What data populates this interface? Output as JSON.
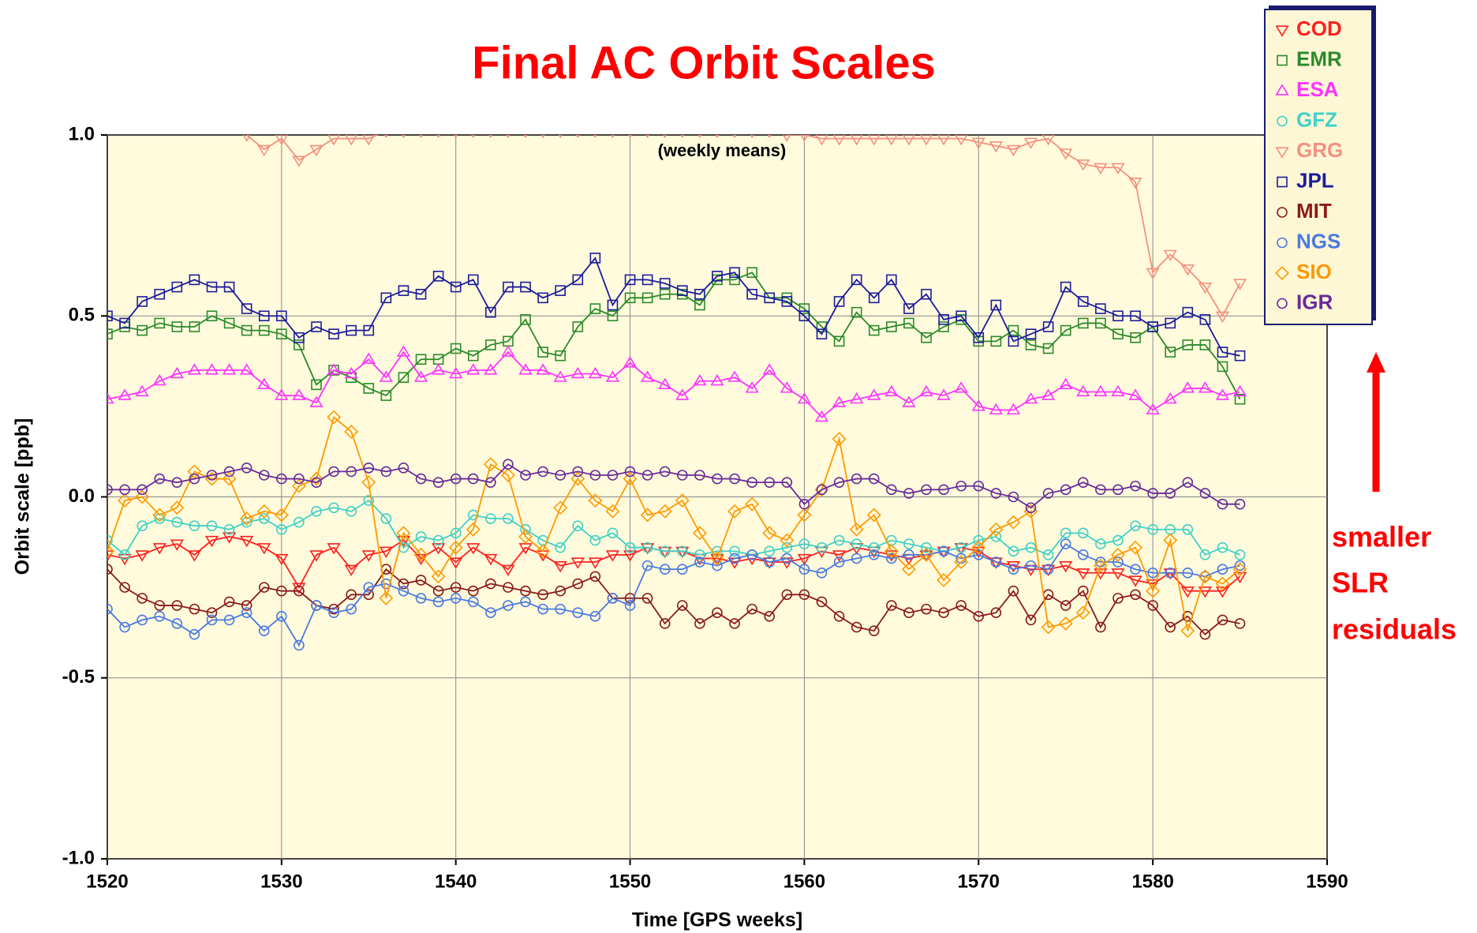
{
  "chart_data": {
    "type": "line",
    "title": "Final AC Orbit Scales",
    "annotation": "(weekly means)",
    "side_note": [
      "smaller",
      "SLR",
      "residuals"
    ],
    "x_label": "Time [GPS weeks]",
    "y_label": "Orbit scale [ppb]",
    "xlim": [
      1520,
      1590
    ],
    "xticks": [
      1520,
      1530,
      1540,
      1550,
      1560,
      1570,
      1580,
      1590
    ],
    "ylim": [
      -1,
      1
    ],
    "yticks": [
      {
        "value": -1,
        "label": "-1.0"
      },
      {
        "value": -0.5,
        "label": "-0.5"
      },
      {
        "value": 0,
        "label": "0.0"
      },
      {
        "value": 0.5,
        "label": "0.5"
      },
      {
        "value": 1,
        "label": "1.0"
      }
    ],
    "grid": true,
    "legend": "upper right",
    "x": [
      1520,
      1521,
      1522,
      1523,
      1524,
      1525,
      1526,
      1527,
      1528,
      1529,
      1530,
      1531,
      1532,
      1533,
      1534,
      1535,
      1536,
      1537,
      1538,
      1539,
      1540,
      1541,
      1542,
      1543,
      1544,
      1545,
      1546,
      1547,
      1548,
      1549,
      1550,
      1551,
      1552,
      1553,
      1554,
      1555,
      1556,
      1557,
      1558,
      1559,
      1560,
      1561,
      1562,
      1563,
      1564,
      1565,
      1566,
      1567,
      1568,
      1569,
      1570,
      1571,
      1572,
      1573,
      1574,
      1575,
      1576,
      1577,
      1578,
      1579,
      1580,
      1581,
      1582,
      1583,
      1584,
      1585
    ],
    "series": [
      {
        "name": "COD",
        "color": "#ff2020",
        "marker": "triangle-down",
        "values": [
          -0.16,
          -0.17,
          -0.16,
          -0.14,
          -0.13,
          -0.16,
          -0.12,
          -0.11,
          -0.12,
          -0.14,
          -0.17,
          -0.25,
          -0.16,
          -0.14,
          -0.2,
          -0.16,
          -0.15,
          -0.12,
          -0.17,
          -0.14,
          -0.18,
          -0.14,
          -0.17,
          -0.2,
          -0.14,
          -0.16,
          -0.19,
          -0.18,
          -0.18,
          -0.16,
          -0.16,
          -0.14,
          -0.15,
          -0.15,
          -0.17,
          -0.17,
          -0.18,
          -0.17,
          -0.18,
          -0.18,
          -0.17,
          -0.15,
          -0.16,
          -0.14,
          -0.15,
          -0.16,
          -0.17,
          -0.16,
          -0.15,
          -0.14,
          -0.15,
          -0.18,
          -0.19,
          -0.2,
          -0.2,
          -0.19,
          -0.21,
          -0.21,
          -0.21,
          -0.23,
          -0.24,
          -0.21,
          -0.26,
          -0.26,
          -0.26,
          -0.22
        ]
      },
      {
        "name": "EMR",
        "color": "#2a8a2a",
        "marker": "square",
        "values": [
          0.45,
          0.47,
          0.46,
          0.48,
          0.47,
          0.47,
          0.5,
          0.48,
          0.46,
          0.46,
          0.45,
          0.42,
          0.31,
          0.35,
          0.33,
          0.3,
          0.28,
          0.33,
          0.38,
          0.38,
          0.41,
          0.39,
          0.42,
          0.43,
          0.49,
          0.4,
          0.39,
          0.47,
          0.52,
          0.5,
          0.55,
          0.55,
          0.56,
          0.56,
          0.53,
          0.6,
          0.6,
          0.62,
          0.55,
          0.55,
          0.52,
          0.47,
          0.43,
          0.51,
          0.46,
          0.47,
          0.48,
          0.44,
          0.47,
          0.49,
          0.43,
          0.43,
          0.46,
          0.42,
          0.41,
          0.46,
          0.48,
          0.48,
          0.45,
          0.44,
          0.47,
          0.4,
          0.42,
          0.42,
          0.36,
          0.27
        ]
      },
      {
        "name": "ESA",
        "color": "#ff33ff",
        "marker": "triangle-up",
        "values": [
          0.27,
          0.28,
          0.29,
          0.32,
          0.34,
          0.35,
          0.35,
          0.35,
          0.35,
          0.31,
          0.28,
          0.28,
          0.26,
          0.35,
          0.34,
          0.38,
          0.33,
          0.4,
          0.33,
          0.35,
          0.34,
          0.35,
          0.35,
          0.4,
          0.35,
          0.35,
          0.33,
          0.34,
          0.34,
          0.33,
          0.37,
          0.33,
          0.31,
          0.28,
          0.32,
          0.32,
          0.33,
          0.3,
          0.35,
          0.3,
          0.27,
          0.22,
          0.26,
          0.27,
          0.28,
          0.29,
          0.26,
          0.29,
          0.28,
          0.3,
          0.25,
          0.24,
          0.24,
          0.27,
          0.28,
          0.31,
          0.29,
          0.29,
          0.29,
          0.28,
          0.24,
          0.27,
          0.3,
          0.3,
          0.28,
          0.29
        ]
      },
      {
        "name": "GFZ",
        "color": "#40d0c8",
        "marker": "circle",
        "values": [
          -0.12,
          -0.16,
          -0.08,
          -0.06,
          -0.07,
          -0.08,
          -0.08,
          -0.09,
          -0.07,
          -0.06,
          -0.09,
          -0.07,
          -0.04,
          -0.03,
          -0.04,
          -0.01,
          -0.06,
          -0.14,
          -0.11,
          -0.12,
          -0.1,
          -0.05,
          -0.06,
          -0.06,
          -0.09,
          -0.12,
          -0.14,
          -0.08,
          -0.12,
          -0.1,
          -0.14,
          -0.14,
          -0.15,
          -0.15,
          -0.16,
          -0.15,
          -0.15,
          -0.16,
          -0.15,
          -0.14,
          -0.13,
          -0.14,
          -0.12,
          -0.13,
          -0.14,
          -0.12,
          -0.13,
          -0.14,
          -0.15,
          -0.14,
          -0.12,
          -0.11,
          -0.15,
          -0.14,
          -0.16,
          -0.1,
          -0.1,
          -0.13,
          -0.12,
          -0.08,
          -0.09,
          -0.09,
          -0.09,
          -0.16,
          -0.14,
          -0.16
        ]
      },
      {
        "name": "GRG",
        "color": "#f59080",
        "marker": "triangle-down",
        "values": [
          1.05,
          1.06,
          1.05,
          1.04,
          1.05,
          1.06,
          1.04,
          1.03,
          1.0,
          0.96,
          0.99,
          0.93,
          0.96,
          0.99,
          0.99,
          0.99,
          1.01,
          1.01,
          1.01,
          1.01,
          1.01,
          1.01,
          1.01,
          1.01,
          1.01,
          1.01,
          1.01,
          1.01,
          1.01,
          1.01,
          1.01,
          1.01,
          1.01,
          1.01,
          1.01,
          1.01,
          1.01,
          1.01,
          1.01,
          1.0,
          1.0,
          0.99,
          0.99,
          0.99,
          0.99,
          0.99,
          0.99,
          0.99,
          0.99,
          0.99,
          0.98,
          0.97,
          0.96,
          0.98,
          0.99,
          0.95,
          0.92,
          0.91,
          0.91,
          0.87,
          0.62,
          0.67,
          0.63,
          0.58,
          0.5,
          0.59
        ]
      },
      {
        "name": "JPL",
        "color": "#1c1c9c",
        "marker": "square",
        "values": [
          0.5,
          0.48,
          0.54,
          0.56,
          0.58,
          0.6,
          0.58,
          0.58,
          0.52,
          0.5,
          0.5,
          0.44,
          0.47,
          0.45,
          0.46,
          0.46,
          0.55,
          0.57,
          0.56,
          0.61,
          0.58,
          0.6,
          0.51,
          0.58,
          0.58,
          0.55,
          0.57,
          0.6,
          0.66,
          0.53,
          0.6,
          0.6,
          0.59,
          0.57,
          0.56,
          0.61,
          0.62,
          0.56,
          0.55,
          0.54,
          0.5,
          0.45,
          0.54,
          0.6,
          0.55,
          0.6,
          0.52,
          0.56,
          0.49,
          0.5,
          0.44,
          0.53,
          0.43,
          0.45,
          0.47,
          0.58,
          0.54,
          0.52,
          0.5,
          0.5,
          0.47,
          0.48,
          0.51,
          0.49,
          0.4,
          0.39
        ]
      },
      {
        "name": "MIT",
        "color": "#8b1a1a",
        "marker": "circle",
        "values": [
          -0.2,
          -0.25,
          -0.28,
          -0.3,
          -0.3,
          -0.31,
          -0.32,
          -0.29,
          -0.3,
          -0.25,
          -0.26,
          -0.26,
          -0.3,
          -0.31,
          -0.27,
          -0.27,
          -0.2,
          -0.24,
          -0.23,
          -0.26,
          -0.25,
          -0.26,
          -0.24,
          -0.25,
          -0.26,
          -0.27,
          -0.26,
          -0.24,
          -0.22,
          -0.28,
          -0.28,
          -0.28,
          -0.35,
          -0.3,
          -0.35,
          -0.32,
          -0.35,
          -0.31,
          -0.33,
          -0.27,
          -0.27,
          -0.29,
          -0.33,
          -0.36,
          -0.37,
          -0.3,
          -0.32,
          -0.31,
          -0.32,
          -0.3,
          -0.33,
          -0.32,
          -0.26,
          -0.34,
          -0.27,
          -0.3,
          -0.26,
          -0.36,
          -0.28,
          -0.27,
          -0.3,
          -0.36,
          -0.33,
          -0.38,
          -0.34,
          -0.35
        ]
      },
      {
        "name": "NGS",
        "color": "#4a7ae0",
        "marker": "circle",
        "values": [
          -0.31,
          -0.36,
          -0.34,
          -0.33,
          -0.35,
          -0.38,
          -0.34,
          -0.34,
          -0.32,
          -0.37,
          -0.33,
          -0.41,
          -0.3,
          -0.32,
          -0.31,
          -0.25,
          -0.24,
          -0.26,
          -0.28,
          -0.29,
          -0.28,
          -0.29,
          -0.32,
          -0.3,
          -0.29,
          -0.31,
          -0.31,
          -0.32,
          -0.33,
          -0.28,
          -0.3,
          -0.19,
          -0.2,
          -0.2,
          -0.18,
          -0.19,
          -0.17,
          -0.16,
          -0.18,
          -0.17,
          -0.2,
          -0.21,
          -0.18,
          -0.17,
          -0.16,
          -0.17,
          -0.16,
          -0.16,
          -0.15,
          -0.17,
          -0.16,
          -0.18,
          -0.2,
          -0.19,
          -0.2,
          -0.13,
          -0.16,
          -0.18,
          -0.18,
          -0.2,
          -0.21,
          -0.21,
          -0.21,
          -0.22,
          -0.2,
          -0.19
        ]
      },
      {
        "name": "SIO",
        "color": "#ff9900",
        "marker": "diamond",
        "values": [
          -0.15,
          -0.01,
          0,
          -0.05,
          -0.03,
          0.07,
          0.05,
          0.05,
          -0.06,
          -0.04,
          -0.05,
          0.03,
          0.05,
          0.22,
          0.18,
          0.04,
          -0.28,
          -0.1,
          -0.16,
          -0.22,
          -0.14,
          -0.09,
          0.09,
          0.06,
          -0.11,
          -0.15,
          -0.03,
          0.05,
          -0.01,
          -0.04,
          0.05,
          -0.05,
          -0.04,
          -0.01,
          -0.1,
          -0.17,
          -0.04,
          -0.02,
          -0.1,
          -0.12,
          -0.05,
          0.02,
          0.16,
          -0.09,
          -0.05,
          -0.15,
          -0.2,
          -0.16,
          -0.23,
          -0.18,
          -0.14,
          -0.09,
          -0.07,
          -0.04,
          -0.36,
          -0.35,
          -0.32,
          -0.19,
          -0.16,
          -0.14,
          -0.26,
          -0.12,
          -0.37,
          -0.22,
          -0.24,
          -0.2
        ]
      },
      {
        "name": "IGR",
        "color": "#6a2a9a",
        "marker": "circle",
        "values": [
          0.02,
          0.02,
          0.02,
          0.05,
          0.04,
          0.05,
          0.06,
          0.07,
          0.08,
          0.06,
          0.05,
          0.05,
          0.04,
          0.07,
          0.07,
          0.08,
          0.07,
          0.08,
          0.05,
          0.04,
          0.05,
          0.05,
          0.04,
          0.09,
          0.06,
          0.07,
          0.06,
          0.07,
          0.06,
          0.06,
          0.07,
          0.06,
          0.07,
          0.06,
          0.06,
          0.05,
          0.05,
          0.04,
          0.04,
          0.04,
          -0.02,
          0.02,
          0.04,
          0.05,
          0.05,
          0.02,
          0.01,
          0.02,
          0.02,
          0.03,
          0.03,
          0.01,
          0,
          -0.03,
          0.01,
          0.02,
          0.04,
          0.02,
          0.02,
          0.03,
          0.01,
          0.01,
          0.04,
          0.01,
          -0.02,
          -0.02
        ]
      }
    ]
  }
}
